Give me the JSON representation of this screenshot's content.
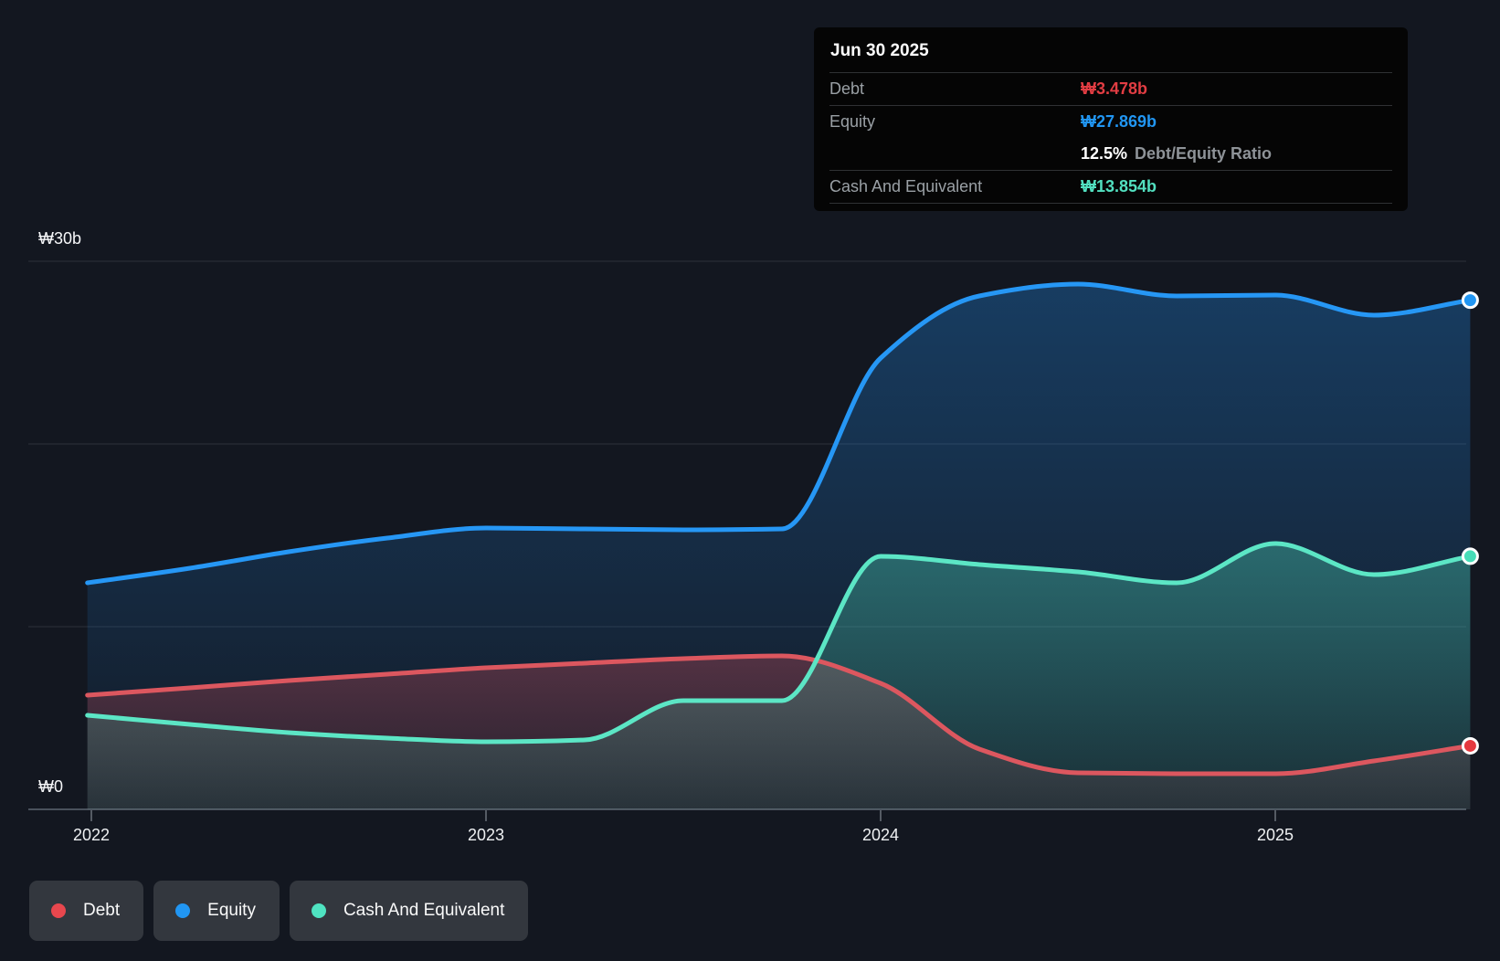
{
  "tooltip": {
    "date": "Jun 30 2025",
    "debt_label": "Debt",
    "debt_value": "₩3.478b",
    "equity_label": "Equity",
    "equity_value": "₩27.869b",
    "ratio_value": "12.5%",
    "ratio_label": "Debt/Equity Ratio",
    "cash_label": "Cash And Equivalent",
    "cash_value": "₩13.854b"
  },
  "legend": {
    "debt": "Debt",
    "equity": "Equity",
    "cash": "Cash And Equivalent"
  },
  "colors": {
    "background": "#131720",
    "debt_line": "#dc575f",
    "debt_marker": "#e5393f",
    "equity_line": "#2697f5",
    "equity_marker": "#2196f3",
    "cash_line": "#5ce6c5",
    "cash_marker": "#46ddb8",
    "gridline": "#2c303a",
    "axis_line": "#4a515c",
    "tick": "#555b64",
    "axis_text": "#eef0f2"
  },
  "chart_data": {
    "type": "area",
    "x_unit": "year",
    "x": [
      2021.99,
      2022.25,
      2022.5,
      2022.75,
      2023.0,
      2023.25,
      2023.5,
      2023.75,
      2024.0,
      2024.25,
      2024.5,
      2024.75,
      2025.0,
      2025.25,
      2025.494
    ],
    "series": [
      {
        "name": "Equity",
        "color": "#2697f5",
        "marker_color": "#2196f3",
        "values": [
          12.4,
          13.2,
          14.1,
          14.85,
          15.4,
          15.35,
          15.3,
          15.35,
          24.7,
          28.1,
          28.75,
          28.1,
          28.15,
          27.05,
          27.869
        ]
      },
      {
        "name": "Debt",
        "color": "#dc575f",
        "marker_color": "#e5393f",
        "values": [
          6.25,
          6.65,
          7.05,
          7.4,
          7.75,
          8.0,
          8.25,
          8.4,
          6.9,
          3.3,
          2.0,
          1.95,
          1.95,
          2.65,
          3.478
        ]
      },
      {
        "name": "Cash And Equivalent",
        "color": "#5ce6c5",
        "marker_color": "#46ddb8",
        "values": [
          5.15,
          4.65,
          4.2,
          3.9,
          3.7,
          3.8,
          5.95,
          5.95,
          13.85,
          13.4,
          13.0,
          12.4,
          14.55,
          12.85,
          13.854
        ]
      }
    ],
    "last_point_date": "Jun 30 2025",
    "ylim": [
      0,
      30
    ],
    "y_gridline_values": [
      30,
      20,
      10
    ],
    "y_axis_labels": [
      {
        "value": 30,
        "label": "₩30b"
      },
      {
        "value": 0,
        "label": "₩0"
      }
    ],
    "x_ticks": [
      2022,
      2023,
      2024,
      2025
    ],
    "x_tick_labels": [
      "2022",
      "2023",
      "2024",
      "2025"
    ],
    "grid": "horizontal-only",
    "legend_position": "bottom-left"
  }
}
